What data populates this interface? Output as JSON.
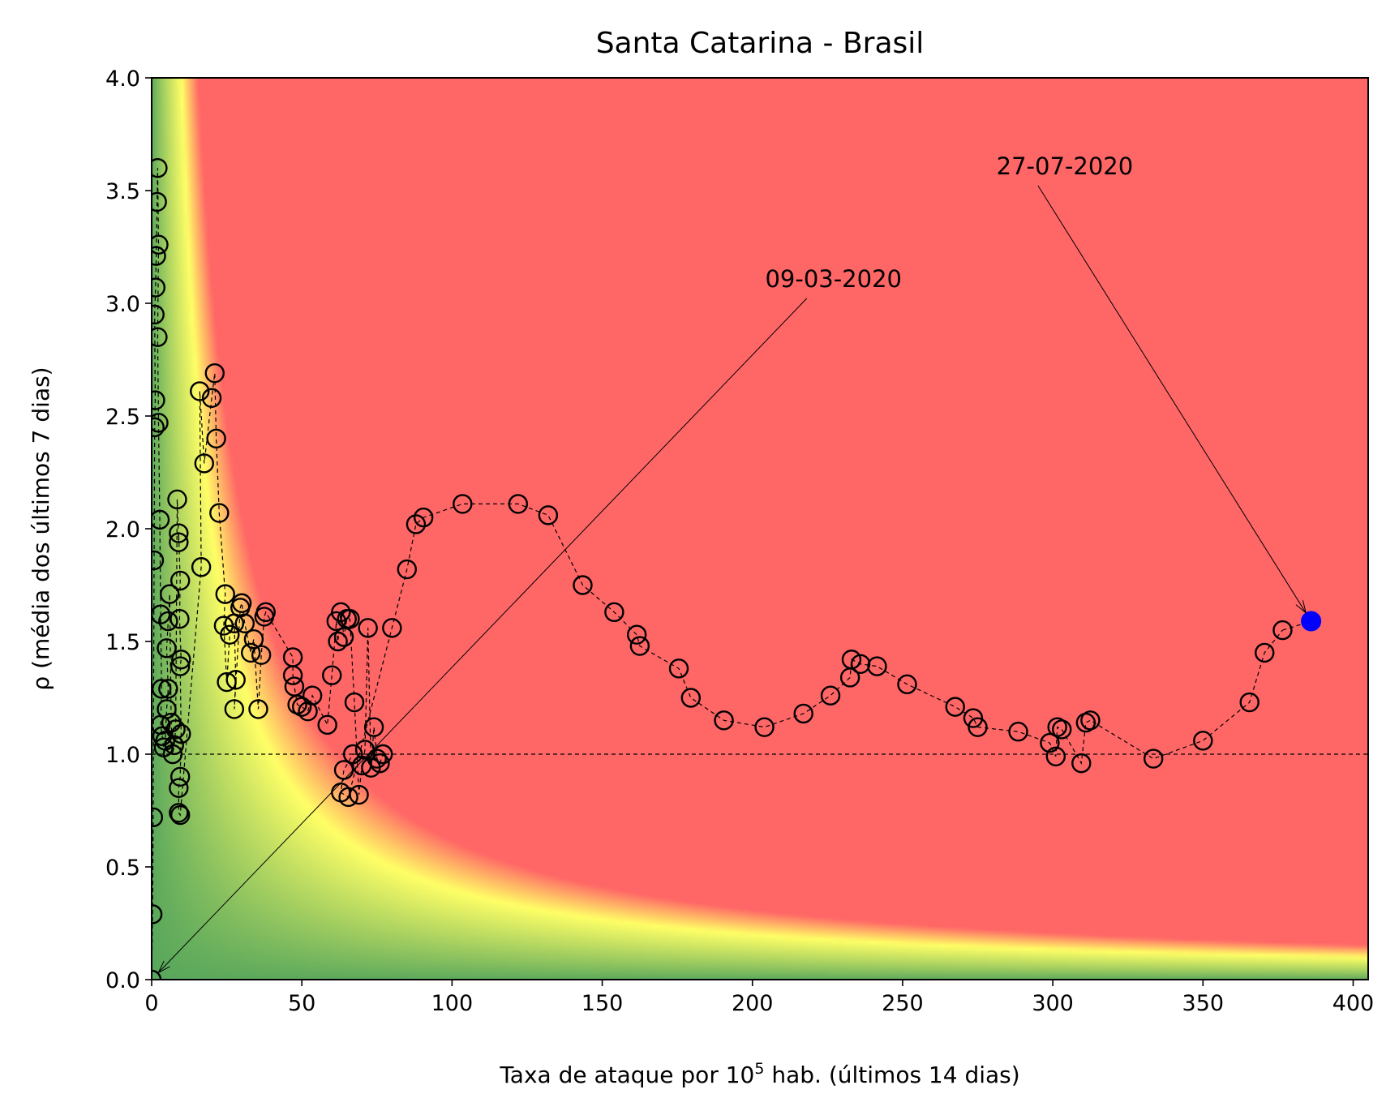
{
  "chart_data": {
    "type": "scatter",
    "title": "Santa Catarina - Brasil",
    "xlabel": {
      "prefix": "Taxa de ataque por 10",
      "superscript": "5",
      "suffix": " hab. (últimos 14 dias)"
    },
    "ylabel": "ρ (média dos últimos 7 dias)",
    "xlim": [
      0,
      405
    ],
    "ylim": [
      0,
      4
    ],
    "xticks": [
      0,
      50,
      100,
      150,
      200,
      250,
      300,
      350,
      400
    ],
    "yticks": [
      0.0,
      0.5,
      1.0,
      1.5,
      2.0,
      2.5,
      3.0,
      3.5,
      4.0
    ],
    "xtick_labels": [
      "0",
      "50",
      "100",
      "150",
      "200",
      "250",
      "300",
      "350",
      "400"
    ],
    "ytick_labels": [
      "0.0",
      "0.5",
      "1.0",
      "1.5",
      "2.0",
      "2.5",
      "3.0",
      "3.5",
      "4.0"
    ],
    "reference_line": {
      "y": 1.0,
      "style": "dashed"
    },
    "background": {
      "type": "risk-gradient",
      "metric": "x * y",
      "colors": {
        "low": "#5aa85c",
        "mid": "#ffff66",
        "high": "#ff6666"
      }
    },
    "series": [
      {
        "marker": "open-circle",
        "line": "dashed",
        "color": "#000000",
        "points": [
          [
            0.0,
            0.0
          ],
          [
            0.3,
            0.29
          ],
          [
            0.5,
            0.72
          ],
          [
            0.8,
            1.86
          ],
          [
            1.0,
            2.45
          ],
          [
            1.2,
            2.57
          ],
          [
            1.0,
            2.95
          ],
          [
            1.3,
            3.07
          ],
          [
            1.5,
            3.21
          ],
          [
            1.8,
            3.45
          ],
          [
            2.0,
            3.6
          ],
          [
            2.3,
            3.26
          ],
          [
            2.0,
            2.85
          ],
          [
            2.3,
            2.47
          ],
          [
            2.7,
            2.04
          ],
          [
            3.0,
            1.62
          ],
          [
            3.3,
            1.29
          ],
          [
            3.0,
            1.13
          ],
          [
            3.5,
            1.08
          ],
          [
            4.0,
            1.03
          ],
          [
            4.5,
            1.06
          ],
          [
            5.0,
            1.2
          ],
          [
            5.5,
            1.29
          ],
          [
            5.0,
            1.47
          ],
          [
            5.5,
            1.59
          ],
          [
            6.0,
            1.71
          ],
          [
            6.5,
            1.14
          ],
          [
            7.0,
            1.0
          ],
          [
            7.5,
            1.04
          ],
          [
            8.0,
            1.11
          ],
          [
            8.5,
            2.13
          ],
          [
            9.0,
            1.94
          ],
          [
            9.0,
            1.98
          ],
          [
            9.5,
            1.77
          ],
          [
            9.3,
            1.6
          ],
          [
            9.8,
            1.42
          ],
          [
            9.5,
            1.39
          ],
          [
            9.8,
            1.09
          ],
          [
            9.5,
            0.9
          ],
          [
            9.0,
            0.85
          ],
          [
            9.0,
            0.74
          ],
          [
            9.5,
            0.73
          ],
          [
            16.5,
            1.83
          ],
          [
            16.0,
            2.61
          ],
          [
            17.5,
            2.29
          ],
          [
            20.0,
            2.58
          ],
          [
            21.0,
            2.69
          ],
          [
            21.5,
            2.4
          ],
          [
            22.5,
            2.07
          ],
          [
            24.5,
            1.71
          ],
          [
            24.0,
            1.57
          ],
          [
            25.0,
            1.32
          ],
          [
            26.0,
            1.53
          ],
          [
            27.5,
            1.58
          ],
          [
            28.0,
            1.33
          ],
          [
            27.5,
            1.2
          ],
          [
            29.5,
            1.65
          ],
          [
            30.0,
            1.67
          ],
          [
            31.0,
            1.58
          ],
          [
            33.0,
            1.45
          ],
          [
            34.0,
            1.51
          ],
          [
            35.5,
            1.2
          ],
          [
            36.5,
            1.44
          ],
          [
            37.5,
            1.61
          ],
          [
            38.0,
            1.63
          ],
          [
            47.0,
            1.43
          ],
          [
            47.0,
            1.35
          ],
          [
            47.5,
            1.3
          ],
          [
            48.5,
            1.22
          ],
          [
            50.0,
            1.21
          ],
          [
            52.0,
            1.19
          ],
          [
            53.5,
            1.26
          ],
          [
            58.5,
            1.13
          ],
          [
            60.0,
            1.35
          ],
          [
            61.5,
            1.59
          ],
          [
            62.0,
            1.5
          ],
          [
            63.0,
            1.63
          ],
          [
            64.0,
            1.52
          ],
          [
            65.0,
            1.6
          ],
          [
            66.0,
            1.6
          ],
          [
            67.5,
            1.23
          ],
          [
            69.0,
            0.82
          ],
          [
            70.0,
            0.95
          ],
          [
            71.0,
            1.02
          ],
          [
            72.0,
            1.56
          ],
          [
            73.0,
            0.94
          ],
          [
            74.0,
            1.12
          ],
          [
            75.0,
            0.98
          ],
          [
            76.0,
            0.96
          ],
          [
            77.0,
            1.0
          ],
          [
            67.0,
            1.0
          ],
          [
            64.0,
            0.93
          ],
          [
            63.0,
            0.83
          ],
          [
            65.5,
            0.81
          ],
          [
            80.0,
            1.56
          ],
          [
            85.0,
            1.82
          ],
          [
            88.0,
            2.02
          ],
          [
            90.5,
            2.05
          ],
          [
            103.5,
            2.11
          ],
          [
            122.0,
            2.11
          ],
          [
            132.0,
            2.06
          ],
          [
            143.5,
            1.75
          ],
          [
            154.0,
            1.63
          ],
          [
            161.5,
            1.53
          ],
          [
            162.5,
            1.48
          ],
          [
            175.5,
            1.38
          ],
          [
            179.5,
            1.25
          ],
          [
            190.5,
            1.15
          ],
          [
            204.0,
            1.12
          ],
          [
            217.0,
            1.18
          ],
          [
            226.0,
            1.26
          ],
          [
            232.5,
            1.34
          ],
          [
            233.0,
            1.42
          ],
          [
            236.0,
            1.4
          ],
          [
            241.5,
            1.39
          ],
          [
            251.5,
            1.31
          ],
          [
            267.5,
            1.21
          ],
          [
            273.5,
            1.16
          ],
          [
            275.0,
            1.12
          ],
          [
            288.5,
            1.1
          ],
          [
            299.0,
            1.05
          ],
          [
            301.0,
            0.99
          ],
          [
            301.5,
            1.12
          ],
          [
            303.0,
            1.11
          ],
          [
            309.5,
            0.96
          ],
          [
            311.0,
            1.14
          ],
          [
            312.5,
            1.15
          ],
          [
            333.5,
            0.98
          ],
          [
            350.0,
            1.06
          ],
          [
            365.5,
            1.23
          ],
          [
            370.5,
            1.45
          ],
          [
            376.5,
            1.55
          ]
        ]
      },
      {
        "marker": "filled-circle",
        "color": "#0000ff",
        "points": [
          [
            386.0,
            1.59
          ]
        ]
      }
    ],
    "annotations": [
      {
        "text": "09-03-2020",
        "point": [
          0.0,
          0.0
        ],
        "text_pos": [
          227.0,
          3.0
        ]
      },
      {
        "text": "27-07-2020",
        "point": [
          386.0,
          1.59
        ],
        "text_pos": [
          304.0,
          3.5
        ]
      }
    ]
  }
}
